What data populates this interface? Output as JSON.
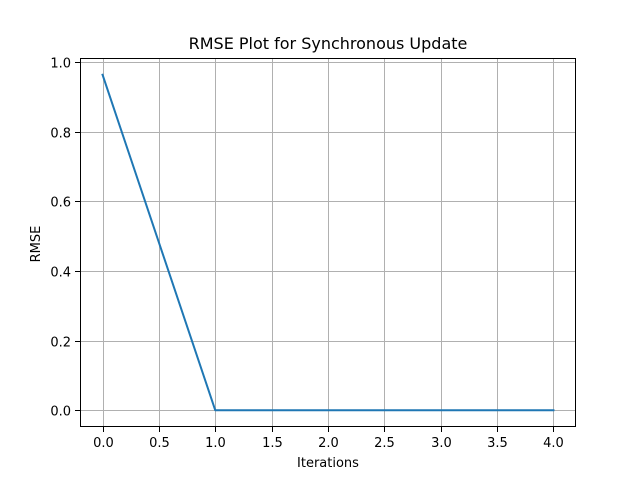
{
  "chart_data": {
    "type": "line",
    "title": "RMSE Plot for Synchronous Update",
    "xlabel": "Iterations",
    "ylabel": "RMSE",
    "x": [
      0,
      1,
      2,
      3,
      4
    ],
    "series": [
      {
        "values": [
          0.963,
          0.0,
          0.0,
          0.0,
          0.0
        ],
        "color": "#1f77b4"
      }
    ],
    "xlim": [
      -0.2,
      4.2
    ],
    "ylim": [
      -0.048,
      1.011
    ],
    "xticks": [
      0.0,
      0.5,
      1.0,
      1.5,
      2.0,
      2.5,
      3.0,
      3.5,
      4.0
    ],
    "xtick_labels": [
      "0.0",
      "0.5",
      "1.0",
      "1.5",
      "2.0",
      "2.5",
      "3.0",
      "3.5",
      "4.0"
    ],
    "yticks": [
      0.0,
      0.2,
      0.4,
      0.6,
      0.8,
      1.0
    ],
    "ytick_labels": [
      "0.0",
      "0.2",
      "0.4",
      "0.6",
      "0.8",
      "1.0"
    ],
    "grid": true,
    "legend": "none"
  }
}
